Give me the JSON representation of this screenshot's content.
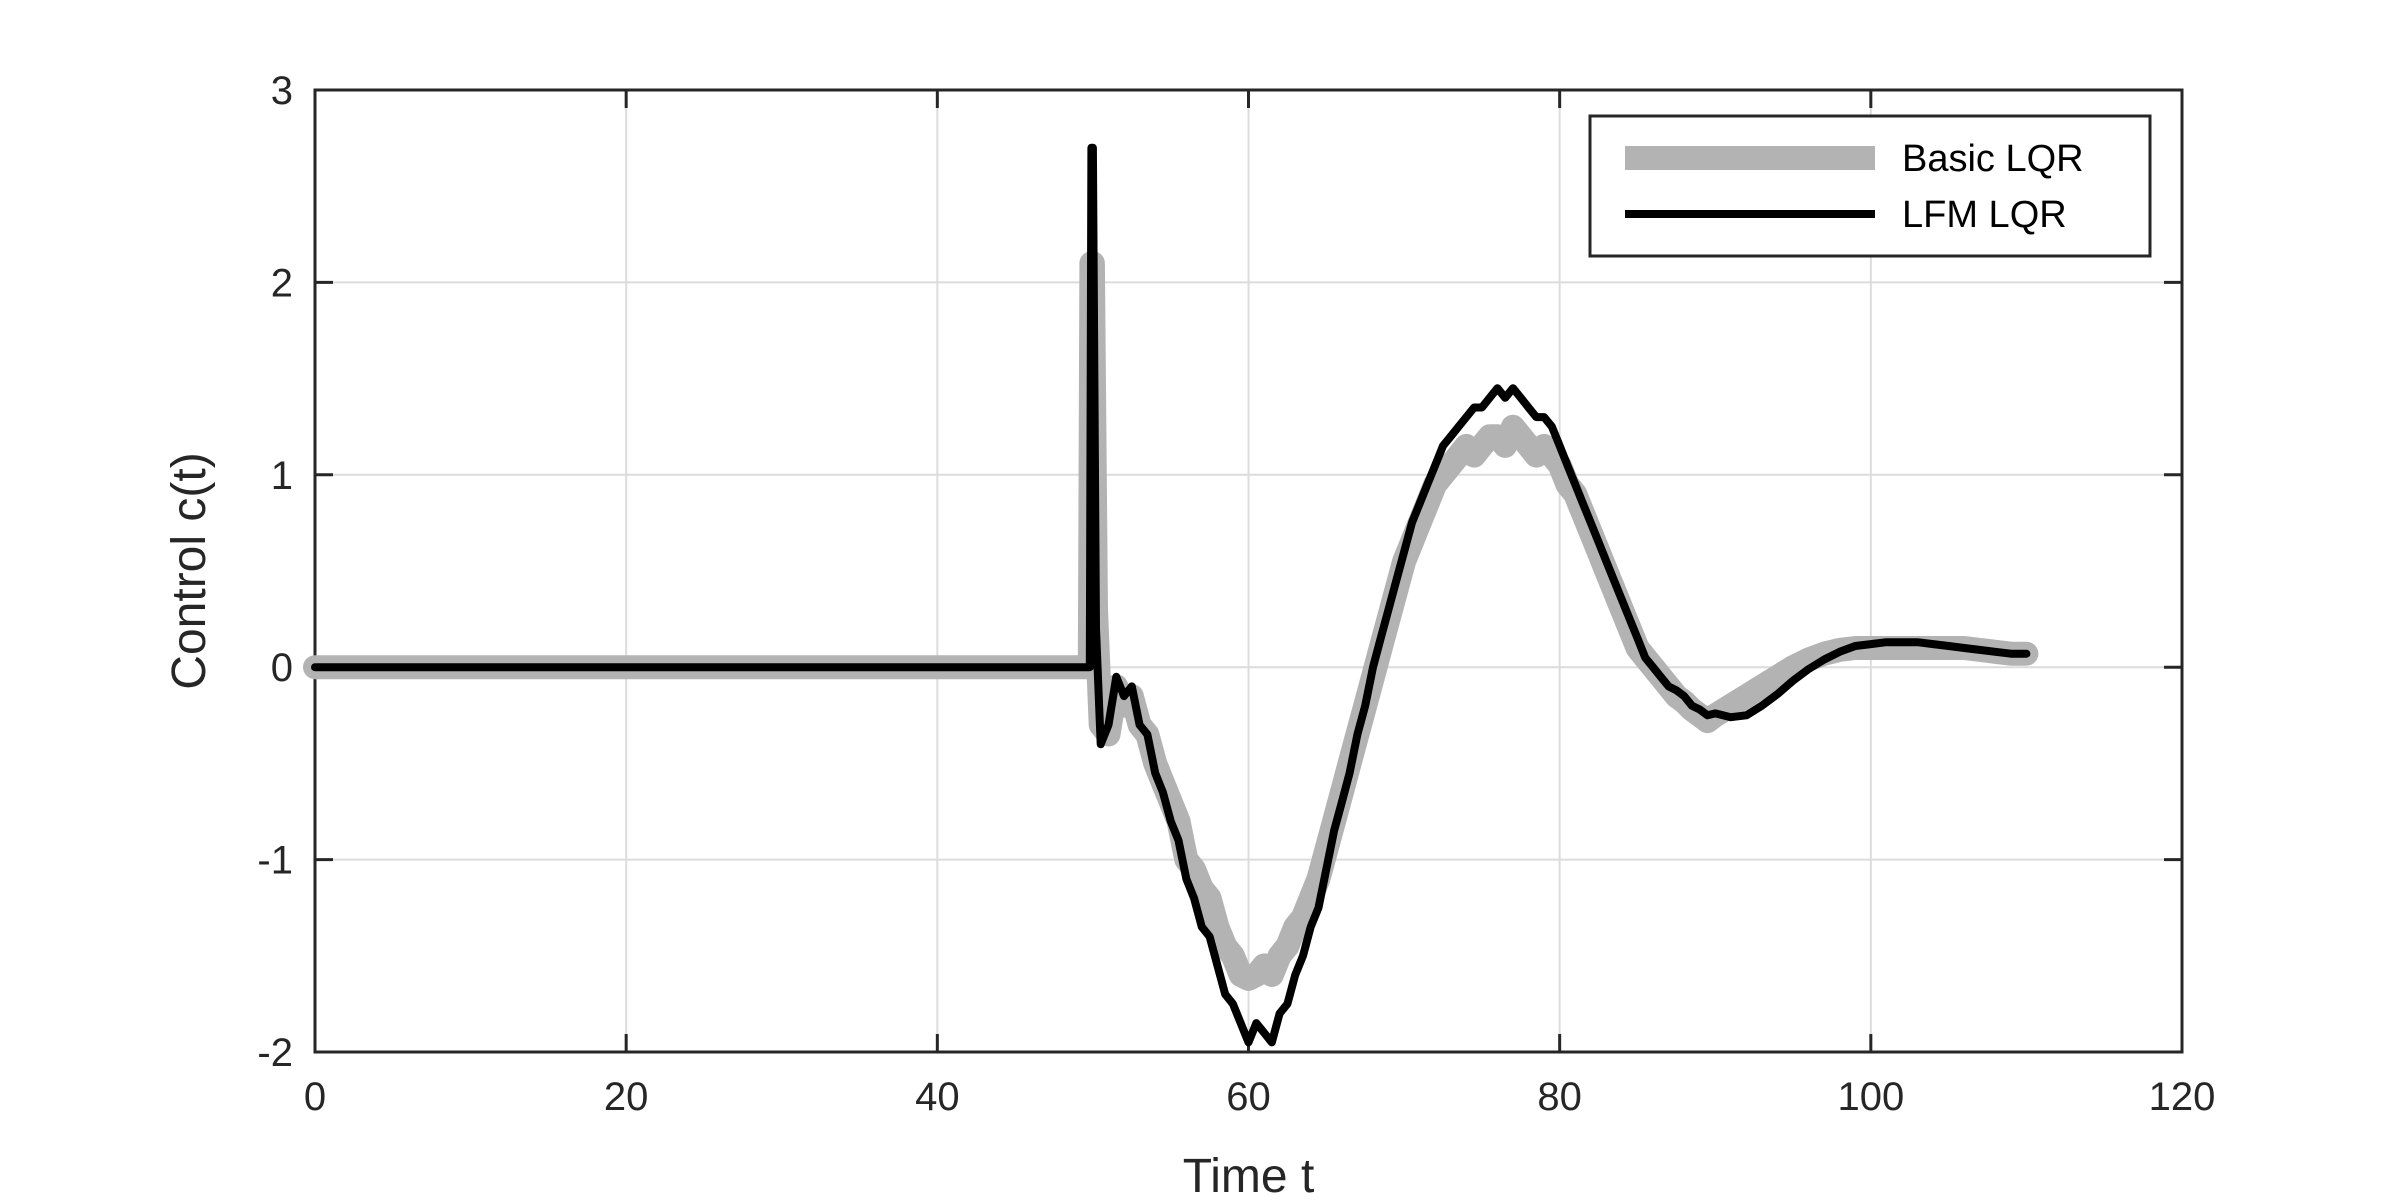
{
  "chart_data": {
    "type": "line",
    "title": "",
    "xlabel": "Time t",
    "ylabel": "Control c(t)",
    "xlim": [
      0,
      120
    ],
    "ylim": [
      -2,
      3
    ],
    "xticks": [
      0,
      20,
      40,
      60,
      80,
      100,
      120
    ],
    "yticks": [
      -2,
      -1,
      0,
      1,
      2,
      3
    ],
    "xtick_labels": [
      "0",
      "20",
      "40",
      "60",
      "80",
      "100",
      "120"
    ],
    "ytick_labels": [
      "-2",
      "-1",
      "0",
      "1",
      "2",
      "3"
    ],
    "grid": true,
    "legend_position": "top-right",
    "series": [
      {
        "name": "Basic LQR",
        "color": "#b3b3b3",
        "x": [
          0,
          49.8,
          49.9,
          50.0,
          50.2,
          50.5,
          51,
          51.5,
          52,
          52.5,
          53,
          53.5,
          54,
          54.5,
          55,
          55.5,
          56,
          56.5,
          57,
          57.5,
          58,
          58.5,
          59,
          59.5,
          60,
          60.5,
          61,
          61.5,
          62,
          62.5,
          63,
          63.5,
          64,
          64.5,
          65,
          65.5,
          66,
          66.5,
          67,
          67.5,
          68,
          68.5,
          69,
          69.5,
          70,
          70.5,
          71,
          71.5,
          72,
          72.5,
          73,
          73.5,
          74,
          74.5,
          75,
          75.5,
          76,
          76.5,
          77,
          77.5,
          78,
          78.5,
          79,
          79.5,
          80,
          80.5,
          81,
          81.5,
          82,
          82.5,
          83,
          83.5,
          84,
          84.5,
          85,
          85.5,
          86,
          86.5,
          87,
          87.5,
          88,
          88.5,
          89,
          89.5,
          90,
          91,
          92,
          93,
          94,
          95,
          96,
          97,
          98,
          99,
          100,
          101,
          102,
          103,
          104,
          105,
          106,
          107,
          108,
          109,
          110
        ],
        "y": [
          0.0,
          0.0,
          2.1,
          2.1,
          0.3,
          -0.3,
          -0.35,
          -0.1,
          -0.2,
          -0.15,
          -0.3,
          -0.35,
          -0.5,
          -0.6,
          -0.7,
          -0.8,
          -1.0,
          -1.05,
          -1.15,
          -1.2,
          -1.35,
          -1.45,
          -1.5,
          -1.6,
          -1.62,
          -1.6,
          -1.55,
          -1.6,
          -1.5,
          -1.45,
          -1.35,
          -1.3,
          -1.2,
          -1.1,
          -0.95,
          -0.8,
          -0.65,
          -0.5,
          -0.35,
          -0.2,
          -0.05,
          0.1,
          0.25,
          0.4,
          0.55,
          0.65,
          0.75,
          0.85,
          0.95,
          1.0,
          1.05,
          1.1,
          1.15,
          1.1,
          1.15,
          1.2,
          1.2,
          1.15,
          1.25,
          1.2,
          1.15,
          1.1,
          1.15,
          1.1,
          1.05,
          0.95,
          0.9,
          0.8,
          0.7,
          0.6,
          0.5,
          0.4,
          0.3,
          0.2,
          0.1,
          0.05,
          0.0,
          -0.05,
          -0.1,
          -0.15,
          -0.18,
          -0.22,
          -0.25,
          -0.28,
          -0.25,
          -0.2,
          -0.15,
          -0.1,
          -0.05,
          0.0,
          0.04,
          0.07,
          0.09,
          0.1,
          0.1,
          0.1,
          0.1,
          0.1,
          0.1,
          0.1,
          0.1,
          0.09,
          0.08,
          0.07,
          0.07
        ]
      },
      {
        "name": "LFM LQR",
        "color": "#000000",
        "x": [
          0,
          49.8,
          49.9,
          50.0,
          50.2,
          50.5,
          51,
          51.5,
          52,
          52.5,
          53,
          53.5,
          54,
          54.5,
          55,
          55.5,
          56,
          56.5,
          57,
          57.5,
          58,
          58.5,
          59,
          59.5,
          60,
          60.5,
          61,
          61.5,
          62,
          62.5,
          63,
          63.5,
          64,
          64.5,
          65,
          65.5,
          66,
          66.5,
          67,
          67.5,
          68,
          68.5,
          69,
          69.5,
          70,
          70.5,
          71,
          71.5,
          72,
          72.5,
          73,
          73.5,
          74,
          74.5,
          75,
          75.5,
          76,
          76.5,
          77,
          77.5,
          78,
          78.5,
          79,
          79.5,
          80,
          80.5,
          81,
          81.5,
          82,
          82.5,
          83,
          83.5,
          84,
          84.5,
          85,
          85.5,
          86,
          86.5,
          87,
          87.5,
          88,
          88.5,
          89,
          89.5,
          90,
          91,
          92,
          93,
          94,
          95,
          96,
          97,
          98,
          99,
          100,
          101,
          102,
          103,
          104,
          105,
          106,
          107,
          108,
          109,
          110
        ],
        "y": [
          0.0,
          0.0,
          2.7,
          2.7,
          0.2,
          -0.4,
          -0.3,
          -0.05,
          -0.15,
          -0.1,
          -0.3,
          -0.35,
          -0.55,
          -0.65,
          -0.8,
          -0.9,
          -1.1,
          -1.2,
          -1.35,
          -1.4,
          -1.55,
          -1.7,
          -1.75,
          -1.85,
          -1.95,
          -1.85,
          -1.9,
          -1.95,
          -1.8,
          -1.75,
          -1.6,
          -1.5,
          -1.35,
          -1.25,
          -1.05,
          -0.85,
          -0.7,
          -0.55,
          -0.35,
          -0.2,
          0.0,
          0.15,
          0.3,
          0.45,
          0.6,
          0.75,
          0.85,
          0.95,
          1.05,
          1.15,
          1.2,
          1.25,
          1.3,
          1.35,
          1.35,
          1.4,
          1.45,
          1.4,
          1.45,
          1.4,
          1.35,
          1.3,
          1.3,
          1.25,
          1.15,
          1.05,
          0.95,
          0.85,
          0.75,
          0.65,
          0.55,
          0.45,
          0.35,
          0.25,
          0.15,
          0.05,
          0.0,
          -0.05,
          -0.1,
          -0.12,
          -0.15,
          -0.2,
          -0.22,
          -0.25,
          -0.24,
          -0.26,
          -0.25,
          -0.2,
          -0.14,
          -0.07,
          -0.01,
          0.04,
          0.08,
          0.11,
          0.12,
          0.13,
          0.13,
          0.13,
          0.12,
          0.11,
          0.1,
          0.09,
          0.08,
          0.07,
          0.07
        ]
      }
    ]
  }
}
